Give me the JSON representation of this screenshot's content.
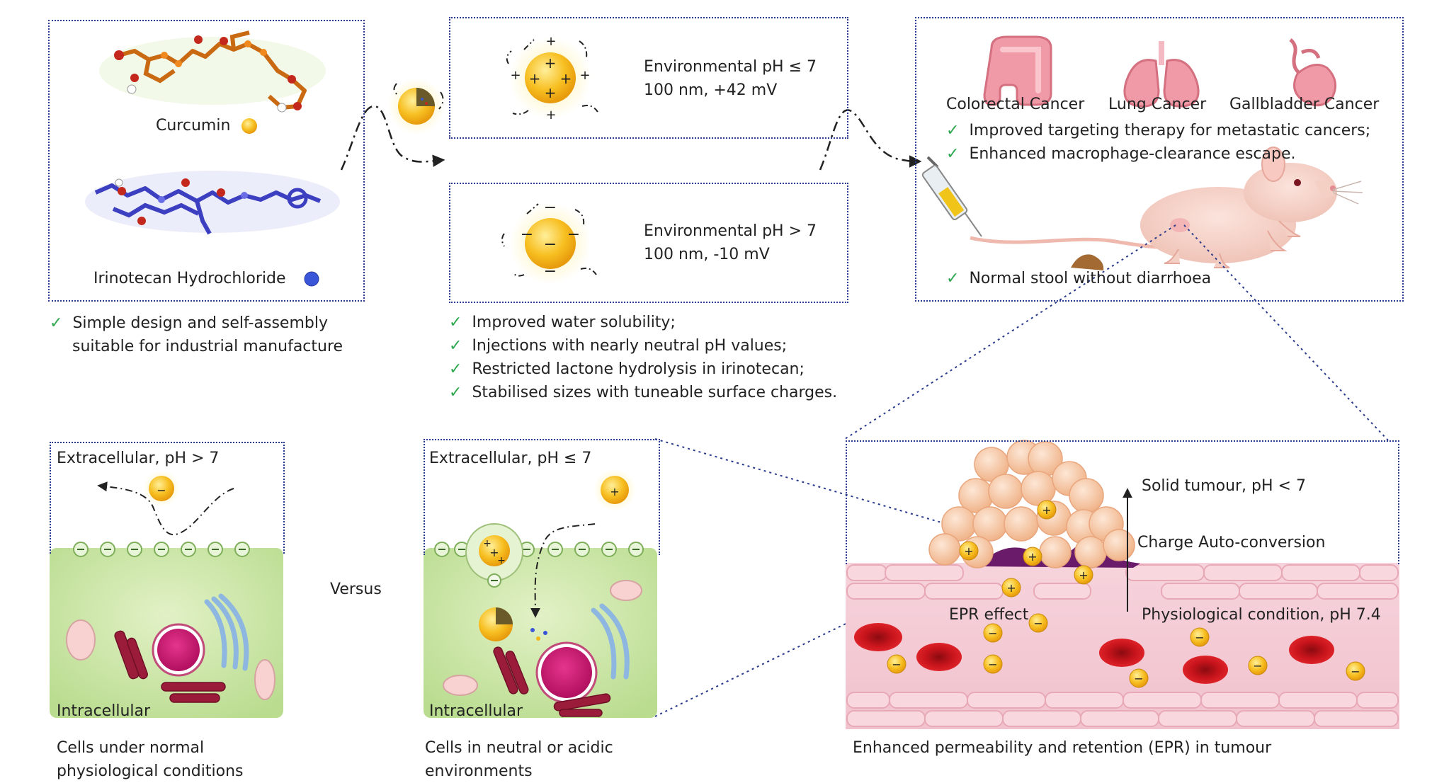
{
  "molecules": {
    "curcumin_label": "Curcumin",
    "irinotecan_label": "Irinotecan Hydrochloride",
    "benefits": [
      "Simple design and self-assembly",
      "suitable for industrial manufacture"
    ]
  },
  "particles": {
    "acidic": {
      "condition": "Environmental pH ≤ 7",
      "properties": "100 nm, +42 mV"
    },
    "basic": {
      "condition": "Environmental pH > 7",
      "properties": "100 nm, -10 mV"
    },
    "benefits": [
      "Improved water solubility;",
      "Injections with nearly neutral pH values;",
      "Restricted lactone hydrolysis in irinotecan;",
      "Stabilised sizes with tuneable surface charges."
    ]
  },
  "animal": {
    "cancers": [
      "Colorectal Cancer",
      "Lung Cancer",
      "Gallbladder Cancer"
    ],
    "benefits": [
      "Improved targeting therapy for metastatic cancers;",
      "Enhanced macrophage-clearance escape."
    ],
    "stool_note": "Normal stool without diarrhoea"
  },
  "cell_normal": {
    "extracellular": "Extracellular, pH > 7",
    "intracellular": "Intracellular",
    "caption": [
      "Cells under normal",
      "physiological conditions"
    ]
  },
  "versus": "Versus",
  "cell_acidic": {
    "extracellular": "Extracellular, pH ≤ 7",
    "intracellular": "Intracellular",
    "caption": [
      "Cells in neutral or acidic",
      "environments"
    ]
  },
  "tumour": {
    "solid_label": "Solid tumour, pH < 7",
    "conversion_label": "Charge Auto-conversion",
    "epr_label": "EPR effect",
    "physiological_label": "Physiological condition, pH 7.4",
    "caption": "Enhanced permeability and retention (EPR) in tumour"
  },
  "symbols": {
    "check": "✓",
    "plus": "+",
    "minus": "−"
  },
  "colors": {
    "border": "#2a3a8c",
    "check": "#2fa84f",
    "particle": "#f5b81c",
    "cell_fill": "#c9e4a5",
    "vessel": "#f2c6cf",
    "blood": "#c8141c"
  }
}
